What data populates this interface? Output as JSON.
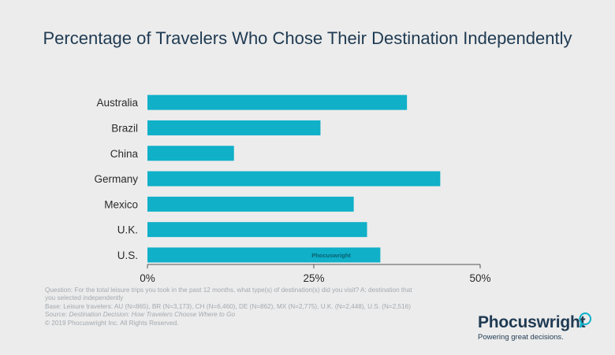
{
  "chart_data": {
    "type": "bar",
    "orientation": "horizontal",
    "title": "Percentage of Travelers Who Chose Their Destination Independently",
    "categories": [
      "Australia",
      "Brazil",
      "China",
      "Germany",
      "Mexico",
      "U.K.",
      "U.S."
    ],
    "values": [
      39,
      26,
      13,
      44,
      31,
      33,
      35
    ],
    "xlim": [
      0,
      50
    ],
    "xticks": [
      "0%",
      "25%",
      "50%"
    ],
    "xtick_values": [
      0,
      25,
      50
    ],
    "grid": false,
    "bar_color": "#0fb0c8",
    "watermark": "Phocuswright"
  },
  "notes": {
    "question": "Question: For the total leisure trips you took in the past 12 months, what type(s) of destination(s) did you visit? A: destination that you selected independently",
    "base": "Base: Leisure travelers: AU (N=865), BR (N=3,173), CH (N=6,460), DE (N=862), MX (N=2,775), U.K. (N=2,448), U.S. (N=2,516)",
    "source_prefix": "Source: ",
    "source_title": "Destination Decision: How Travelers Choose Where to Go",
    "copyright": "© 2019  Phocuswright Inc. All Rights Reserved."
  },
  "logo": {
    "name": "Phocuswright",
    "tagline": "Powering great decisions.",
    "accent": "#0fb0c8",
    "text_color": "#1f3a52"
  }
}
